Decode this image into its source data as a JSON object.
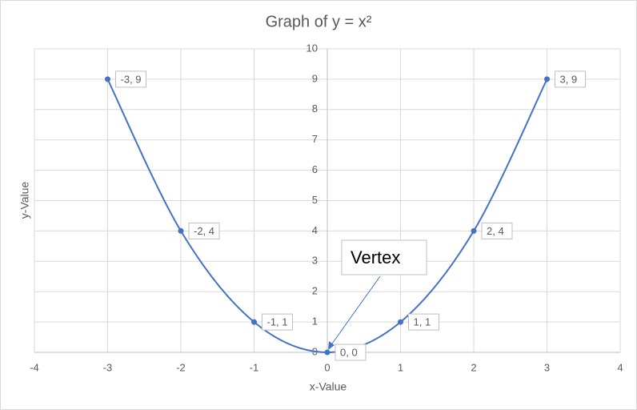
{
  "chart_data": {
    "type": "scatter",
    "title": "Graph of y = x²",
    "x_label": "x-Value",
    "y_label": "y-Value",
    "x": [
      -3,
      -2,
      -1,
      0,
      1,
      2,
      3
    ],
    "series": [
      {
        "color": "#4472c4",
        "values": [
          9,
          4,
          1,
          0,
          1,
          4,
          9
        ],
        "value_labels": [
          "-3, 9",
          "-2, 4",
          "-1, 1",
          "0, 0",
          "1, 1",
          "2, 4",
          "3, 9"
        ],
        "smooth": true
      }
    ],
    "xlim": [
      -4,
      4
    ],
    "xticks": [
      -4,
      -3,
      -2,
      -1,
      0,
      1,
      2,
      3,
      4
    ],
    "ylim": [
      0,
      10
    ],
    "yticks": [
      0,
      1,
      2,
      3,
      4,
      5,
      6,
      7,
      8,
      9,
      10
    ],
    "grid": true,
    "annotation": "Vertex"
  }
}
